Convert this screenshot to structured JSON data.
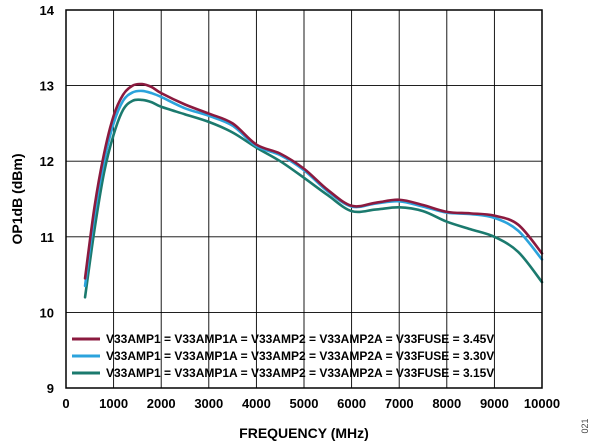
{
  "chart_data": {
    "type": "line",
    "title": "",
    "xlabel": "FREQUENCY (MHz)",
    "ylabel": "OP1dB (dBm)",
    "xlim": [
      0,
      10000
    ],
    "ylim": [
      9,
      14
    ],
    "xticks": [
      0,
      1000,
      2000,
      3000,
      4000,
      5000,
      6000,
      7000,
      8000,
      9000,
      10000
    ],
    "yticks": [
      9,
      10,
      11,
      12,
      13,
      14
    ],
    "grid": true,
    "legend_position": "bottom-left",
    "figure_id": "021",
    "series": [
      {
        "name": "V33AMP1 = V33AMP1A = V33AMP2 = V33AMP2A = V33FUSE = 3.45V",
        "color": "#8B1A3F",
        "x": [
          400,
          600,
          800,
          1000,
          1200,
          1400,
          1600,
          1800,
          2000,
          2500,
          3000,
          3500,
          4000,
          4500,
          5000,
          5500,
          6000,
          6500,
          7000,
          7500,
          8000,
          8500,
          9000,
          9500,
          10000
        ],
        "y": [
          10.45,
          11.4,
          12.1,
          12.6,
          12.88,
          13.0,
          13.02,
          12.98,
          12.9,
          12.75,
          12.63,
          12.5,
          12.22,
          12.1,
          11.9,
          11.62,
          11.41,
          11.45,
          11.49,
          11.42,
          11.33,
          11.31,
          11.28,
          11.16,
          10.78
        ]
      },
      {
        "name": "V33AMP1 = V33AMP1A = V33AMP2 = V33AMP2A = V33FUSE = 3.30V",
        "color": "#2BA3DC",
        "x": [
          400,
          600,
          800,
          1000,
          1200,
          1400,
          1600,
          1800,
          2000,
          2500,
          3000,
          3500,
          4000,
          4500,
          5000,
          5500,
          6000,
          6500,
          7000,
          7500,
          8000,
          8500,
          9000,
          9500,
          10000
        ],
        "y": [
          10.35,
          11.3,
          12.0,
          12.5,
          12.8,
          12.91,
          12.93,
          12.9,
          12.85,
          12.7,
          12.6,
          12.47,
          12.2,
          12.08,
          11.88,
          11.6,
          11.4,
          11.44,
          11.47,
          11.4,
          11.32,
          11.3,
          11.25,
          11.08,
          10.7
        ]
      },
      {
        "name": "V33AMP1 = V33AMP1A = V33AMP2 = V33AMP2A = V33FUSE = 3.15V",
        "color": "#1B7A6E",
        "x": [
          400,
          600,
          800,
          1000,
          1200,
          1400,
          1600,
          1800,
          2000,
          2500,
          3000,
          3500,
          4000,
          4500,
          5000,
          5500,
          6000,
          6500,
          7000,
          7500,
          8000,
          8500,
          9000,
          9500,
          10000
        ],
        "y": [
          10.2,
          11.1,
          11.85,
          12.35,
          12.68,
          12.8,
          12.81,
          12.78,
          12.72,
          12.62,
          12.52,
          12.38,
          12.18,
          12.0,
          11.78,
          11.55,
          11.34,
          11.36,
          11.39,
          11.34,
          11.2,
          11.1,
          11.0,
          10.8,
          10.4
        ]
      }
    ]
  }
}
